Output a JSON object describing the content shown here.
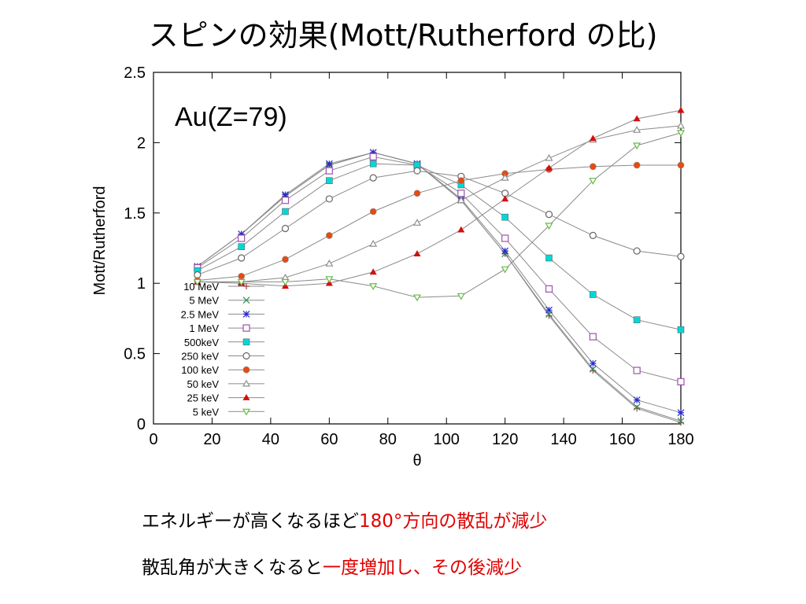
{
  "slide": {
    "title": "スピンの効果(Mott/Rutherford の比)",
    "note1_prefix": "エネルギーが高くなるほど",
    "note1_highlight": "180°方向の散乱が減少",
    "note2_prefix": "散乱角が大きくなると",
    "note2_highlight": "一度増加し、その後減少"
  },
  "chart_data": {
    "type": "line",
    "title": "",
    "annotation": "Au(Z=79)",
    "xlabel": "θ",
    "ylabel": "Mott/Rutherford",
    "xlim": [
      0,
      180
    ],
    "ylim": [
      0,
      2.5
    ],
    "xticks": [
      "0",
      "20",
      "40",
      "60",
      "80",
      "100",
      "120",
      "140",
      "160",
      "180"
    ],
    "yticks": [
      "0",
      "0.5",
      "1",
      "1.5",
      "2",
      "2.5"
    ],
    "grid": false,
    "legend_position": "left",
    "x": [
      15,
      30,
      45,
      60,
      75,
      90,
      105,
      120,
      135,
      150,
      165,
      180
    ],
    "series": [
      {
        "name": "10 MeV",
        "marker": "plus",
        "color": "#a0403a",
        "values": [
          1.12,
          1.35,
          1.62,
          1.84,
          1.93,
          1.85,
          1.59,
          1.21,
          0.77,
          0.38,
          0.11,
          0.01
        ]
      },
      {
        "name": "5 MeV",
        "marker": "x",
        "color": "#2e8b57",
        "values": [
          1.12,
          1.35,
          1.62,
          1.84,
          1.93,
          1.85,
          1.59,
          1.21,
          0.78,
          0.39,
          0.12,
          0.02
        ]
      },
      {
        "name": "2.5 MeV",
        "marker": "star",
        "color": "#2a2ad0",
        "values": [
          1.12,
          1.35,
          1.63,
          1.85,
          1.93,
          1.85,
          1.6,
          1.23,
          0.81,
          0.43,
          0.17,
          0.08
        ]
      },
      {
        "name": "1 MeV",
        "marker": "open-square",
        "color": "#a050b0",
        "values": [
          1.11,
          1.32,
          1.59,
          1.8,
          1.9,
          1.84,
          1.64,
          1.32,
          0.96,
          0.62,
          0.38,
          0.3
        ]
      },
      {
        "name": "500keV",
        "marker": "filled-square",
        "color": "#00d8d8",
        "values": [
          1.09,
          1.26,
          1.51,
          1.73,
          1.85,
          1.84,
          1.7,
          1.47,
          1.18,
          0.92,
          0.74,
          0.67
        ]
      },
      {
        "name": "250 keV",
        "marker": "open-circle",
        "color": "#666666",
        "values": [
          1.06,
          1.18,
          1.39,
          1.6,
          1.75,
          1.8,
          1.76,
          1.64,
          1.49,
          1.34,
          1.23,
          1.19
        ]
      },
      {
        "name": "100 keV",
        "marker": "filled-circle",
        "color": "#e84a10",
        "values": [
          1.02,
          1.05,
          1.17,
          1.34,
          1.51,
          1.64,
          1.73,
          1.78,
          1.81,
          1.83,
          1.84,
          1.84
        ]
      },
      {
        "name": "50 keV",
        "marker": "open-triangle",
        "color": "#909090",
        "values": [
          1.01,
          1.01,
          1.04,
          1.14,
          1.28,
          1.43,
          1.59,
          1.75,
          1.89,
          2.02,
          2.09,
          2.12
        ]
      },
      {
        "name": "25 keV",
        "marker": "filled-triangle",
        "color": "#d01010",
        "values": [
          1.01,
          1.0,
          0.98,
          1.0,
          1.08,
          1.21,
          1.38,
          1.6,
          1.82,
          2.03,
          2.17,
          2.23
        ]
      },
      {
        "name": "5 keV",
        "marker": "open-inverted-triangle",
        "color": "#66bb44",
        "values": [
          1.01,
          1.01,
          1.01,
          1.03,
          0.98,
          0.9,
          0.91,
          1.1,
          1.41,
          1.73,
          1.98,
          2.07
        ]
      }
    ]
  }
}
